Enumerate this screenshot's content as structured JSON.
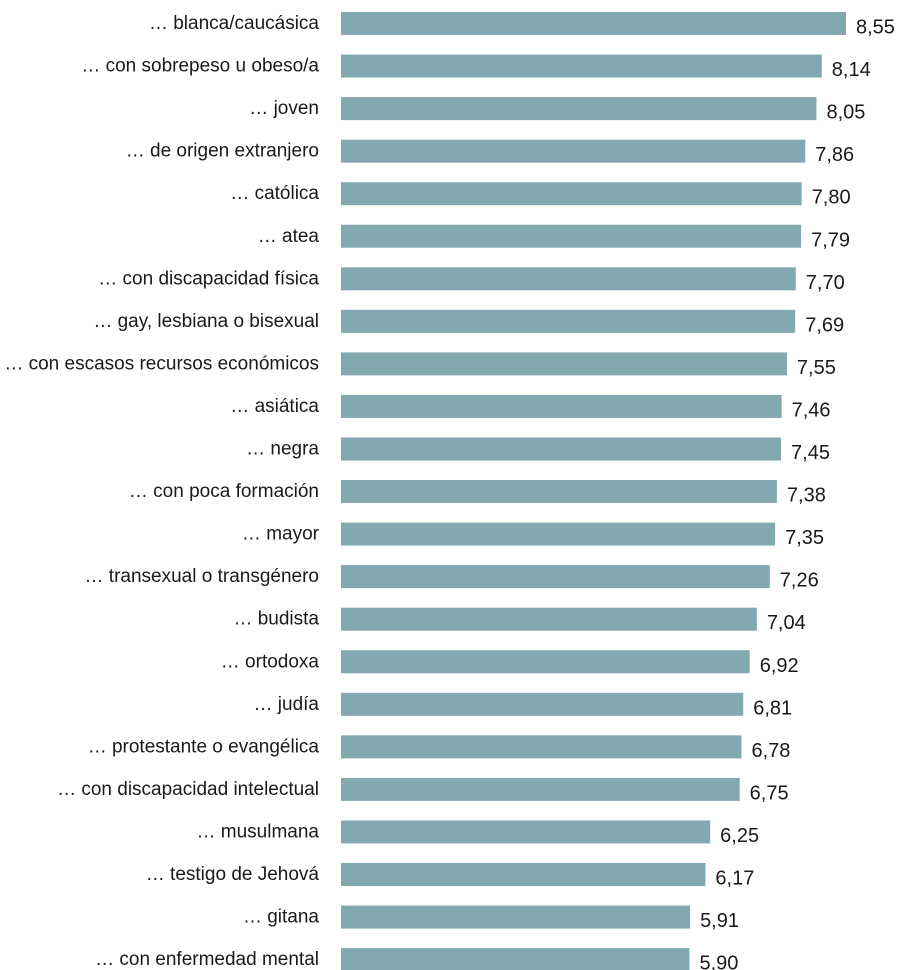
{
  "chart_data": {
    "type": "bar",
    "orientation": "horizontal",
    "categories": [
      "… blanca/caucásica",
      "… con sobrepeso u obeso/a",
      "… joven",
      "… de origen extranjero",
      "… católica",
      "… atea",
      "… con discapacidad física",
      "… gay, lesbiana o bisexual",
      "… con escasos recursos económicos",
      "… asiática",
      "… negra",
      "… con poca formación",
      "… mayor",
      "… transexual o transgénero",
      "… budista",
      "… ortodoxa",
      "… judía",
      "… protestante o evangélica",
      "… con discapacidad intelectual",
      "… musulmana",
      "… testigo de Jehová",
      "… gitana",
      "… con enfermedad mental"
    ],
    "values": [
      8.55,
      8.14,
      8.05,
      7.86,
      7.8,
      7.79,
      7.7,
      7.69,
      7.55,
      7.46,
      7.45,
      7.38,
      7.35,
      7.26,
      7.04,
      6.92,
      6.81,
      6.78,
      6.75,
      6.25,
      6.17,
      5.91,
      5.9
    ],
    "value_labels": [
      "8,55",
      "8,14",
      "8,05",
      "7,86",
      "7,80",
      "7,79",
      "7,70",
      "7,69",
      "7,55",
      "7,46",
      "7,45",
      "7,38",
      "7,35",
      "7,26",
      "7,04",
      "6,92",
      "6,81",
      "6,78",
      "6,75",
      "6,25",
      "6,17",
      "5,91",
      "5,90"
    ],
    "xlim": [
      0,
      8.55
    ],
    "bar_color": "#82a8b0",
    "grid": false,
    "legend": "none"
  }
}
